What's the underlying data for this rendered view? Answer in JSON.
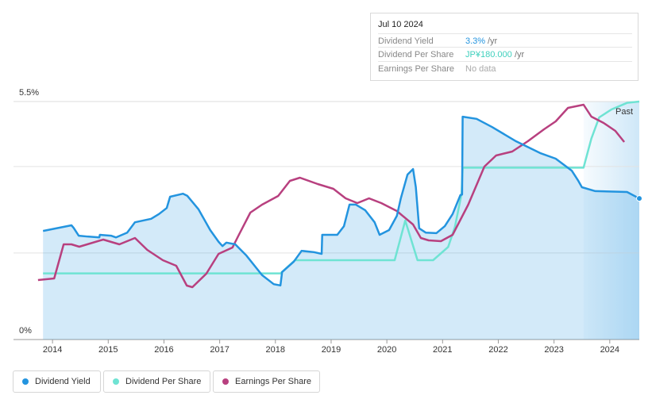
{
  "tooltip": {
    "date": "Jul 10 2024",
    "rows": [
      {
        "label": "Dividend Yield",
        "value": "3.3%",
        "unit": "/yr"
      },
      {
        "label": "Dividend Per Share",
        "value": "JP¥180.000",
        "unit": "/yr"
      },
      {
        "label": "Earnings Per Share",
        "value": "No data"
      }
    ]
  },
  "chart_data": {
    "type": "line",
    "xlim": [
      2013.3,
      2024.53
    ],
    "xticks": [
      2014,
      2015,
      2016,
      2017,
      2018,
      2019,
      2020,
      2021,
      2022,
      2023,
      2024
    ],
    "ylim": [
      0,
      5.5
    ],
    "yticks": [
      {
        "value": 0,
        "label": "0%"
      },
      {
        "value": 5.5,
        "label": "5.5%"
      }
    ],
    "gridlines": [
      2,
      4
    ],
    "y2lim": [
      0,
      180
    ],
    "past": {
      "label": "Past",
      "start": 2023.53
    },
    "series": [
      {
        "name": "Dividend Yield",
        "color": "#2394df",
        "area": true,
        "x": [
          2013.83,
          2014.34,
          2014.38,
          2014.47,
          2014.63,
          2014.84,
          2014.85,
          2015.05,
          2015.14,
          2015.34,
          2015.48,
          2015.77,
          2015.91,
          2016.05,
          2016.11,
          2016.34,
          2016.42,
          2016.62,
          2016.83,
          2016.98,
          2017.05,
          2017.12,
          2017.28,
          2017.48,
          2017.76,
          2017.97,
          2018.09,
          2018.12,
          2018.33,
          2018.47,
          2018.69,
          2018.83,
          2018.84,
          2019.11,
          2019.23,
          2019.33,
          2019.44,
          2019.61,
          2019.78,
          2019.87,
          2020.04,
          2020.18,
          2020.25,
          2020.37,
          2020.47,
          2020.52,
          2020.58,
          2020.7,
          2020.89,
          2021.04,
          2021.18,
          2021.32,
          2021.35,
          2021.36,
          2021.61,
          2021.89,
          2022.32,
          2022.75,
          2023.03,
          2023.32,
          2023.43,
          2023.5,
          2023.74,
          2024.31,
          2024.53
        ],
        "values": [
          2.51,
          2.64,
          2.58,
          2.4,
          2.38,
          2.36,
          2.42,
          2.4,
          2.36,
          2.47,
          2.71,
          2.79,
          2.9,
          3.04,
          3.3,
          3.37,
          3.32,
          3.01,
          2.53,
          2.26,
          2.16,
          2.24,
          2.2,
          1.94,
          1.49,
          1.28,
          1.25,
          1.56,
          1.8,
          2.05,
          2.02,
          1.98,
          2.42,
          2.42,
          2.62,
          3.12,
          3.12,
          2.99,
          2.71,
          2.42,
          2.53,
          2.86,
          3.26,
          3.81,
          3.94,
          3.52,
          2.57,
          2.47,
          2.46,
          2.62,
          2.9,
          3.34,
          3.35,
          5.15,
          5.1,
          4.91,
          4.58,
          4.31,
          4.18,
          3.9,
          3.68,
          3.52,
          3.43,
          3.41,
          3.26
        ]
      },
      {
        "name": "Dividend Per Share",
        "color": "#6fe3d3",
        "axis": "y2",
        "x": [
          2013.83,
          2018.09,
          2018.35,
          2020.14,
          2020.33,
          2020.55,
          2020.83,
          2021.1,
          2021.22,
          2021.34,
          2021.36,
          2023.53,
          2023.67,
          2023.81,
          2024.03,
          2024.31,
          2024.53
        ],
        "values": [
          50,
          50,
          60,
          60,
          90,
          60,
          60,
          70,
          85,
          110,
          130,
          130,
          152,
          168,
          174,
          179,
          180
        ]
      },
      {
        "name": "Earnings Per Share",
        "color": "#b8407f",
        "axis": "y2",
        "x": [
          2013.74,
          2014.03,
          2014.2,
          2014.34,
          2014.48,
          2014.91,
          2015.2,
          2015.48,
          2015.7,
          2015.98,
          2016.22,
          2016.41,
          2016.51,
          2016.76,
          2016.98,
          2017.23,
          2017.33,
          2017.55,
          2017.76,
          2018.05,
          2018.26,
          2018.44,
          2018.76,
          2019.04,
          2019.26,
          2019.47,
          2019.68,
          2019.9,
          2020.18,
          2020.47,
          2020.61,
          2020.75,
          2020.97,
          2021.18,
          2021.46,
          2021.75,
          2021.96,
          2022.25,
          2022.53,
          2022.82,
          2023.03,
          2023.25,
          2023.53,
          2023.67,
          2023.89,
          2024.1,
          2024.26
        ],
        "values": [
          45,
          46.2,
          72,
          72,
          70.2,
          75.6,
          72,
          76.8,
          67.8,
          60,
          55.8,
          40.8,
          39.6,
          49.8,
          64.8,
          69.6,
          78,
          96,
          102,
          108.6,
          120,
          122.4,
          117.6,
          114,
          106.8,
          103.2,
          106.8,
          103.2,
          97.2,
          87,
          76.8,
          75,
          74.4,
          79.2,
          102,
          130.8,
          139.2,
          142.2,
          150,
          159,
          165,
          175.2,
          177.6,
          168.6,
          163.8,
          157.8,
          149.4
        ]
      }
    ]
  }
}
